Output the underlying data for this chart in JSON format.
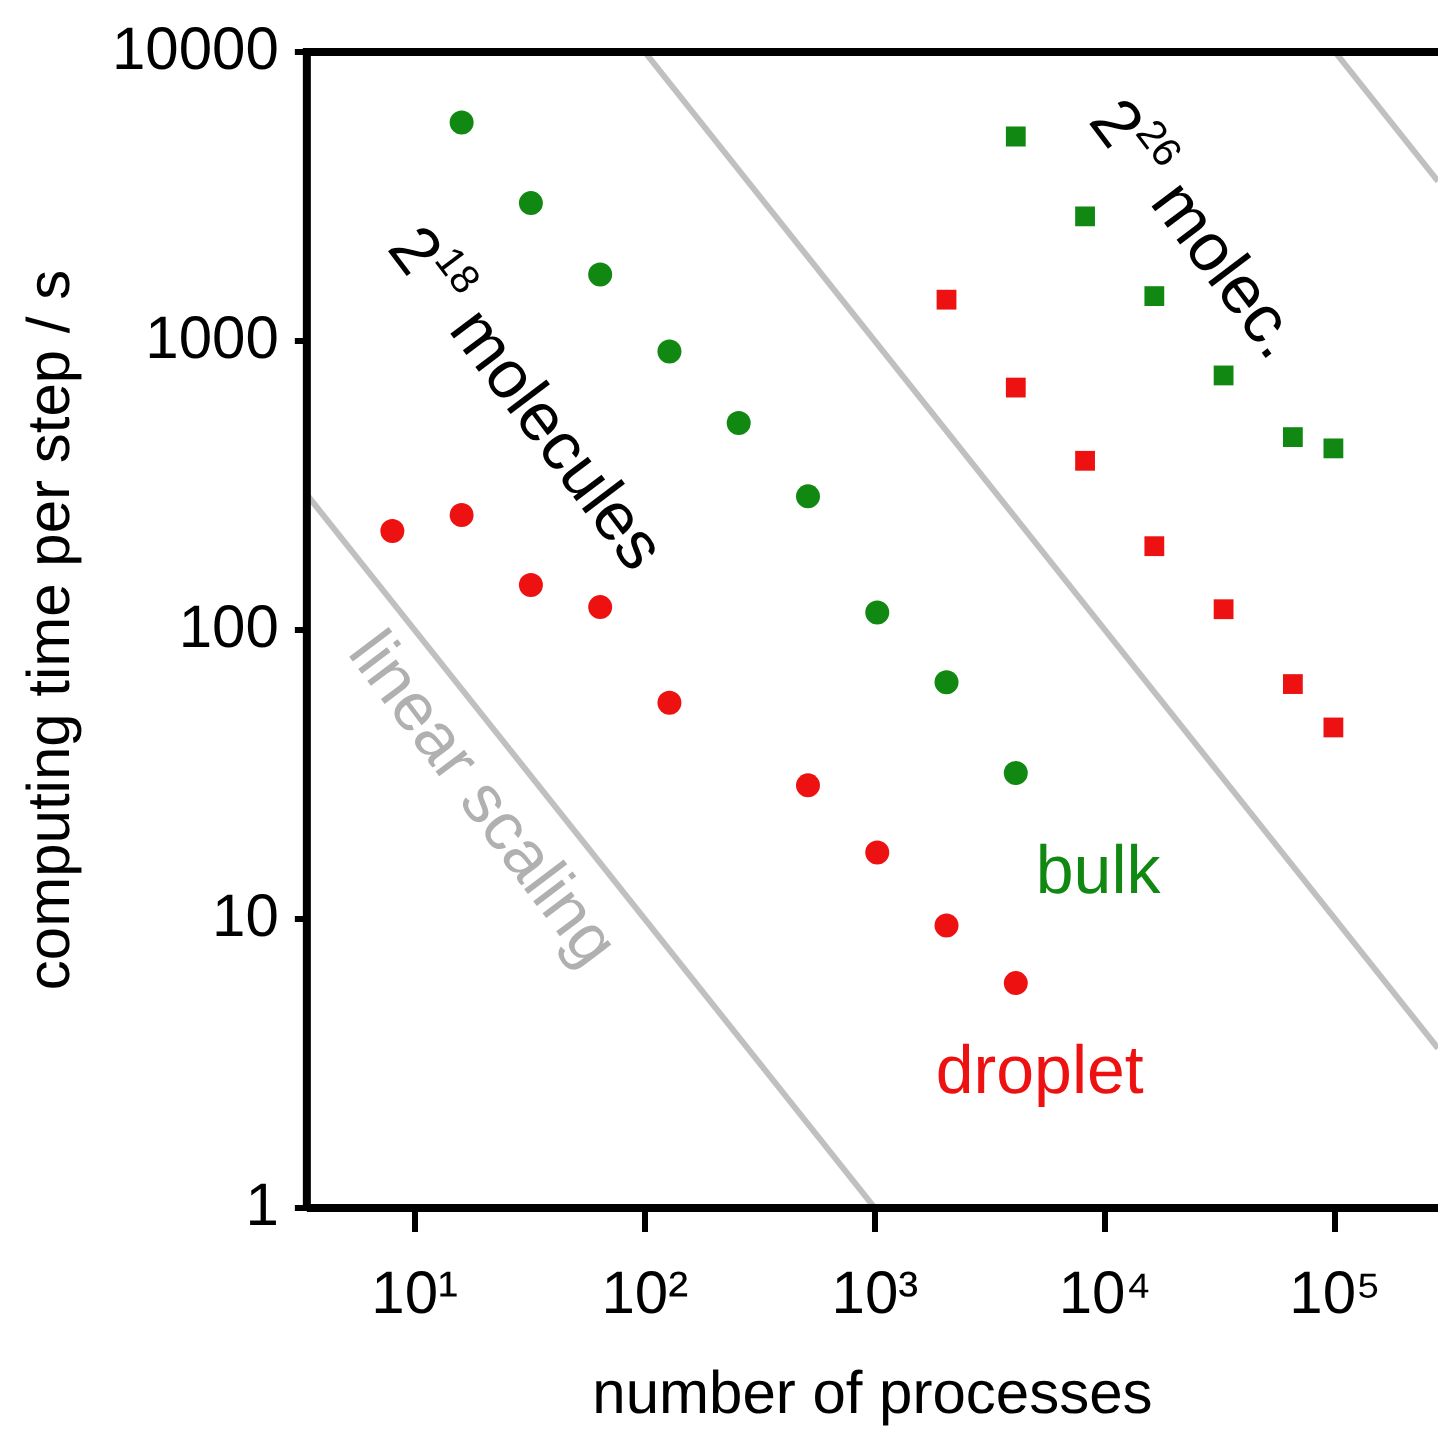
{
  "chart_data": {
    "type": "scatter",
    "xlabel": "number of processes",
    "ylabel": "computing time per step / s",
    "log": "xy",
    "xlim": [
      3.4,
      280000
    ],
    "ylim": [
      1,
      10000
    ],
    "xticks": [
      {
        "value": 10,
        "label": "10¹"
      },
      {
        "value": 100,
        "label": "10²"
      },
      {
        "value": 1000,
        "label": "10³"
      },
      {
        "value": 10000,
        "label": "10⁴"
      },
      {
        "value": 100000,
        "label": "10⁵"
      }
    ],
    "yticks": [
      1,
      10,
      100,
      1000,
      10000
    ],
    "grid": false,
    "legend": false,
    "annotations": [
      "2$^{18}$ molecules",
      "2$^{26}$ molec.",
      "linear scaling"
    ],
    "series": [
      {
        "type": "line",
        "color": "#c0c0c0",
        "marker": "none",
        "x": [
          3.4,
          1000
        ],
        "values": [
          294,
          1
        ]
      },
      {
        "type": "line",
        "color": "#c0c0c0",
        "marker": "none",
        "x": [
          100,
          280000
        ],
        "values": [
          10000,
          3.57
        ]
      },
      {
        "type": "line",
        "color": "#c0c0c0",
        "marker": "none",
        "x": [
          100000,
          280000
        ],
        "values": [
          10000,
          3571
        ]
      },
      {
        "name": "bulk",
        "color": "#118811",
        "marker": "circle",
        "x": [
          16,
          32,
          64,
          128,
          256,
          512,
          1024,
          2048,
          4096
        ],
        "values": [
          5700,
          3000,
          1700,
          920,
          520,
          290,
          115,
          66,
          32
        ]
      },
      {
        "name": "droplet",
        "color": "#ee1111",
        "marker": "circle",
        "x": [
          8,
          16,
          32,
          64,
          128,
          512,
          1024,
          2048,
          4096
        ],
        "values": [
          220,
          250,
          143,
          120,
          56,
          29,
          17,
          9.5,
          6
        ]
      },
      {
        "color": "#118811",
        "marker": "square",
        "x": [
          4096,
          8192,
          16384,
          32768,
          65536,
          98304
        ],
        "values": [
          5100,
          2700,
          1430,
          760,
          465,
          425
        ]
      },
      {
        "color": "#ee1111",
        "marker": "square",
        "x": [
          2048,
          4096,
          8192,
          16384,
          32768,
          65536,
          98304
        ],
        "values": [
          1390,
          690,
          385,
          195,
          118,
          65,
          46
        ]
      }
    ]
  }
}
